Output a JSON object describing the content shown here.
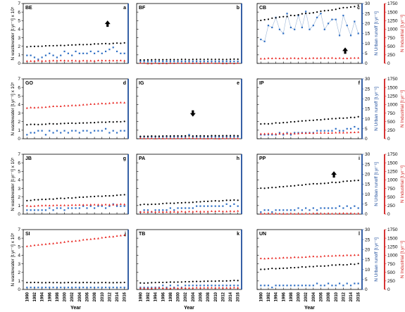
{
  "colors": {
    "wastewater": "#000000",
    "urban": "#2f6fc4",
    "industrial": "#e8231e",
    "right_axis": "#1f4e9c",
    "right_axis2": "#d11f1f"
  },
  "axes": {
    "left_title": "N wastewater [t.yr⁻¹] x 10⁵",
    "right_title": "N Urban runoff [t.yr⁻¹]",
    "right2_title": "N Industrial [t.yr⁻¹]",
    "x_title": "Year",
    "left_ticks": [
      "0",
      "1",
      "2",
      "3",
      "4",
      "5",
      "6",
      "7"
    ],
    "right_ticks": [
      "0",
      "5",
      "10",
      "15",
      "20",
      "25",
      "30"
    ],
    "right2_ticks": [
      "0",
      "250",
      "500",
      "750",
      "1000",
      "1250",
      "1500",
      "1750"
    ],
    "year_ticks": [
      "1990",
      "1992",
      "1994",
      "1996",
      "1998",
      "2000",
      "2002",
      "2004",
      "2006",
      "2008",
      "2010",
      "2012",
      "2014",
      "2016"
    ]
  },
  "chart_data": [
    {
      "type": "scatter",
      "name": "BE",
      "letter": "a",
      "arrow": "up",
      "arrow_pos": [
        2011.5,
        4.6
      ],
      "wastewater": {
        "start": 1.95,
        "end": 2.38,
        "noise": 0.03
      },
      "urban": {
        "values": [
          4,
          4,
          3,
          2,
          3,
          4,
          5,
          4,
          3,
          4,
          6,
          5,
          4,
          6,
          5,
          5,
          5,
          6,
          5,
          6,
          5,
          6,
          7,
          8,
          6,
          5,
          5
        ]
      },
      "industrial": {
        "start": 0.3,
        "end": 0.32
      }
    },
    {
      "type": "scatter",
      "name": "BF",
      "letter": "b",
      "arrow": null,
      "wastewater": {
        "start": 0.42,
        "end": 0.48,
        "noise": 0.02
      },
      "urban": {
        "values": [
          1,
          1,
          1,
          1,
          1,
          1,
          1,
          1,
          1,
          1,
          1,
          1,
          1,
          1,
          1,
          1,
          1,
          1,
          1,
          1,
          1,
          1,
          1,
          1,
          1,
          1,
          1
        ]
      },
      "industrial": {
        "start": 0.02,
        "end": 0.02
      }
    },
    {
      "type": "scatter",
      "name": "CB",
      "letter": "c",
      "arrow": "up",
      "arrow_pos": [
        2012.5,
        1.45
      ],
      "wastewater": {
        "start": 5.05,
        "end": 6.75,
        "noise": 0.05
      },
      "urban": {
        "values": [
          12,
          11,
          19,
          18,
          23,
          17,
          15,
          25,
          18,
          17,
          24,
          18,
          26,
          17,
          19,
          23,
          25,
          17,
          20,
          22,
          22,
          14,
          24,
          19,
          14,
          21,
          15
        ]
      },
      "industrial": {
        "start": 0.58,
        "end": 0.62
      }
    },
    {
      "type": "scatter",
      "name": "GO",
      "letter": "d",
      "arrow": null,
      "wastewater": {
        "start": 1.65,
        "end": 2.0,
        "noise": 0.03
      },
      "urban": {
        "values": [
          2,
          3,
          3,
          4,
          4,
          2,
          4,
          3,
          4,
          3,
          4,
          3,
          4,
          4,
          3,
          4,
          4,
          3,
          4,
          4,
          4,
          5,
          3,
          4,
          3,
          4,
          4
        ]
      },
      "industrial": {
        "start": 3.6,
        "end": 4.25
      }
    },
    {
      "type": "scatter",
      "name": "IG",
      "letter": "e",
      "arrow": "down",
      "arrow_pos": [
        2004,
        3.0
      ],
      "wastewater": {
        "start": 0.3,
        "end": 0.36,
        "noise": 0.02
      },
      "urban": {
        "values": [
          1,
          1,
          1,
          1,
          1,
          1,
          1,
          1,
          1,
          1,
          1,
          1,
          1,
          2,
          1,
          1,
          1,
          1,
          1,
          1,
          1,
          1,
          1,
          1,
          1,
          1,
          1
        ]
      },
      "industrial": {
        "start": 0.05,
        "end": 0.05
      }
    },
    {
      "type": "scatter",
      "name": "IP",
      "letter": "f",
      "arrow": null,
      "wastewater": {
        "start": 1.7,
        "end": 2.55,
        "noise": 0.03
      },
      "urban": {
        "values": [
          2,
          2,
          2,
          2,
          2,
          3,
          2,
          3,
          2,
          3,
          3,
          3,
          3,
          3,
          3,
          4,
          4,
          4,
          4,
          4,
          5,
          4,
          4,
          5,
          5,
          6,
          5
        ]
      },
      "industrial": {
        "start": 0.55,
        "end": 0.75
      }
    },
    {
      "type": "scatter",
      "name": "JB",
      "letter": "g",
      "arrow": null,
      "wastewater": {
        "start": 1.6,
        "end": 2.25,
        "noise": 0.03
      },
      "urban": {
        "values": [
          2,
          2,
          2,
          2,
          2,
          2,
          3,
          2,
          3,
          3,
          2,
          3,
          3,
          3,
          3,
          4,
          3,
          4,
          3,
          4,
          4,
          3,
          4,
          5,
          4,
          4,
          4
        ]
      },
      "industrial": {
        "start": 0.95,
        "end": 1.15
      }
    },
    {
      "type": "scatter",
      "name": "PA",
      "letter": "h",
      "arrow": null,
      "wastewater": {
        "start": 1.1,
        "end": 1.65,
        "noise": 0.03
      },
      "urban": {
        "values": [
          1,
          2,
          2,
          1,
          2,
          2,
          2,
          2,
          3,
          2,
          3,
          3,
          3,
          3,
          3,
          4,
          4,
          4,
          4,
          4,
          4,
          4,
          4,
          5,
          4,
          5,
          4
        ]
      },
      "industrial": {
        "start": 0.25,
        "end": 0.35
      }
    },
    {
      "type": "scatter",
      "name": "PP",
      "letter": "i",
      "arrow": "up",
      "arrow_pos": [
        2009.5,
        4.6
      ],
      "wastewater": {
        "start": 3.0,
        "end": 3.95,
        "noise": 0.04
      },
      "urban": {
        "values": [
          1,
          2,
          2,
          1,
          2,
          2,
          2,
          2,
          2,
          2,
          3,
          2,
          3,
          2,
          3,
          2,
          3,
          3,
          3,
          3,
          3,
          4,
          3,
          4,
          3,
          4,
          3
        ]
      },
      "industrial": {
        "start": 0.05,
        "end": 0.08
      }
    },
    {
      "type": "scatter",
      "name": "SI",
      "letter": "j",
      "arrow": null,
      "wastewater": {
        "start": 0.8,
        "end": 0.8,
        "noise": 0.02
      },
      "urban": {
        "values": [
          1,
          1,
          1,
          1,
          1,
          1,
          1,
          1,
          1,
          1,
          1,
          1,
          1,
          1,
          1,
          1,
          1,
          1,
          1,
          1,
          1,
          1,
          1,
          1,
          1,
          1,
          1
        ]
      },
      "industrial": {
        "start": 5.05,
        "end": 6.35
      }
    },
    {
      "type": "scatter",
      "name": "TB",
      "letter": "k",
      "arrow": null,
      "wastewater": {
        "start": 0.75,
        "end": 1.05,
        "noise": 0.02
      },
      "urban": {
        "values": [
          1,
          1,
          1,
          1,
          1,
          1,
          2,
          1,
          2,
          1,
          2,
          1,
          2,
          2,
          2,
          2,
          2,
          2,
          2,
          2,
          2,
          2,
          2,
          2,
          2,
          2,
          2
        ]
      },
      "industrial": {
        "start": 0.15,
        "end": 0.2
      }
    },
    {
      "type": "scatter",
      "name": "UN",
      "letter": "l",
      "arrow": null,
      "wastewater": {
        "start": 2.35,
        "end": 3.0,
        "noise": 0.04
      },
      "urban": {
        "values": [
          2,
          2,
          2,
          1,
          2,
          2,
          2,
          2,
          2,
          2,
          2,
          2,
          2,
          2,
          2,
          3,
          2,
          2,
          3,
          2,
          2,
          3,
          2,
          3,
          2,
          3,
          3
        ]
      },
      "industrial": {
        "start": 3.6,
        "end": 4.05
      }
    }
  ]
}
